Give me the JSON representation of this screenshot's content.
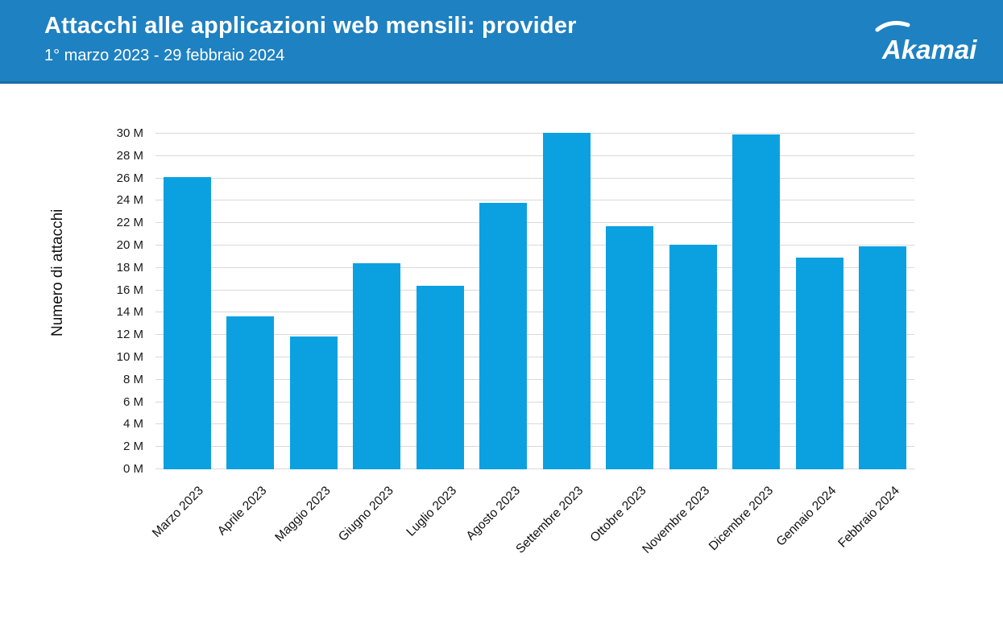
{
  "header": {
    "title": "Attacchi alle applicazioni web mensili: provider",
    "subtitle": "1° marzo 2023 - 29 febbraio 2024",
    "background_color": "#1e81c1",
    "text_color": "#ffffff",
    "logo_text": "Akamai"
  },
  "chart_data": {
    "type": "bar",
    "title": "Attacchi alle applicazioni web mensili: provider",
    "subtitle": "1° marzo 2023 - 29 febbraio 2024",
    "ylabel": "Numero di attacchi",
    "xlabel": "",
    "ylim": [
      0,
      30
    ],
    "unit": "M",
    "grid": "horizontal",
    "legend": "none",
    "bar_color": "#0ba1e1",
    "gridline_color": "#d9d9d9",
    "categories": [
      "Marzo 2023",
      "Aprile 2023",
      "Maggio 2023",
      "Giugno 2023",
      "Luglio 2023",
      "Agosto 2023",
      "Settembre 2023",
      "Ottobre 2023",
      "Novembre 2023",
      "Dicembre 2023",
      "Gennaio 2024",
      "Febbraio 2024"
    ],
    "values": [
      26.1,
      13.7,
      11.9,
      18.4,
      16.4,
      23.8,
      30.1,
      21.7,
      20.1,
      29.9,
      18.9,
      19.9
    ],
    "yticks": [
      {
        "value": 0,
        "label": "0 M"
      },
      {
        "value": 2,
        "label": "2 M"
      },
      {
        "value": 4,
        "label": "4 M"
      },
      {
        "value": 6,
        "label": "6 M"
      },
      {
        "value": 8,
        "label": "8 M"
      },
      {
        "value": 10,
        "label": "10 M"
      },
      {
        "value": 12,
        "label": "12 M"
      },
      {
        "value": 14,
        "label": "14 M"
      },
      {
        "value": 16,
        "label": "16 M"
      },
      {
        "value": 18,
        "label": "18 M"
      },
      {
        "value": 20,
        "label": "20 M"
      },
      {
        "value": 22,
        "label": "22 M"
      },
      {
        "value": 24,
        "label": "24 M"
      },
      {
        "value": 26,
        "label": "26 M"
      },
      {
        "value": 28,
        "label": "28 M"
      },
      {
        "value": 30,
        "label": "30 M"
      }
    ]
  }
}
